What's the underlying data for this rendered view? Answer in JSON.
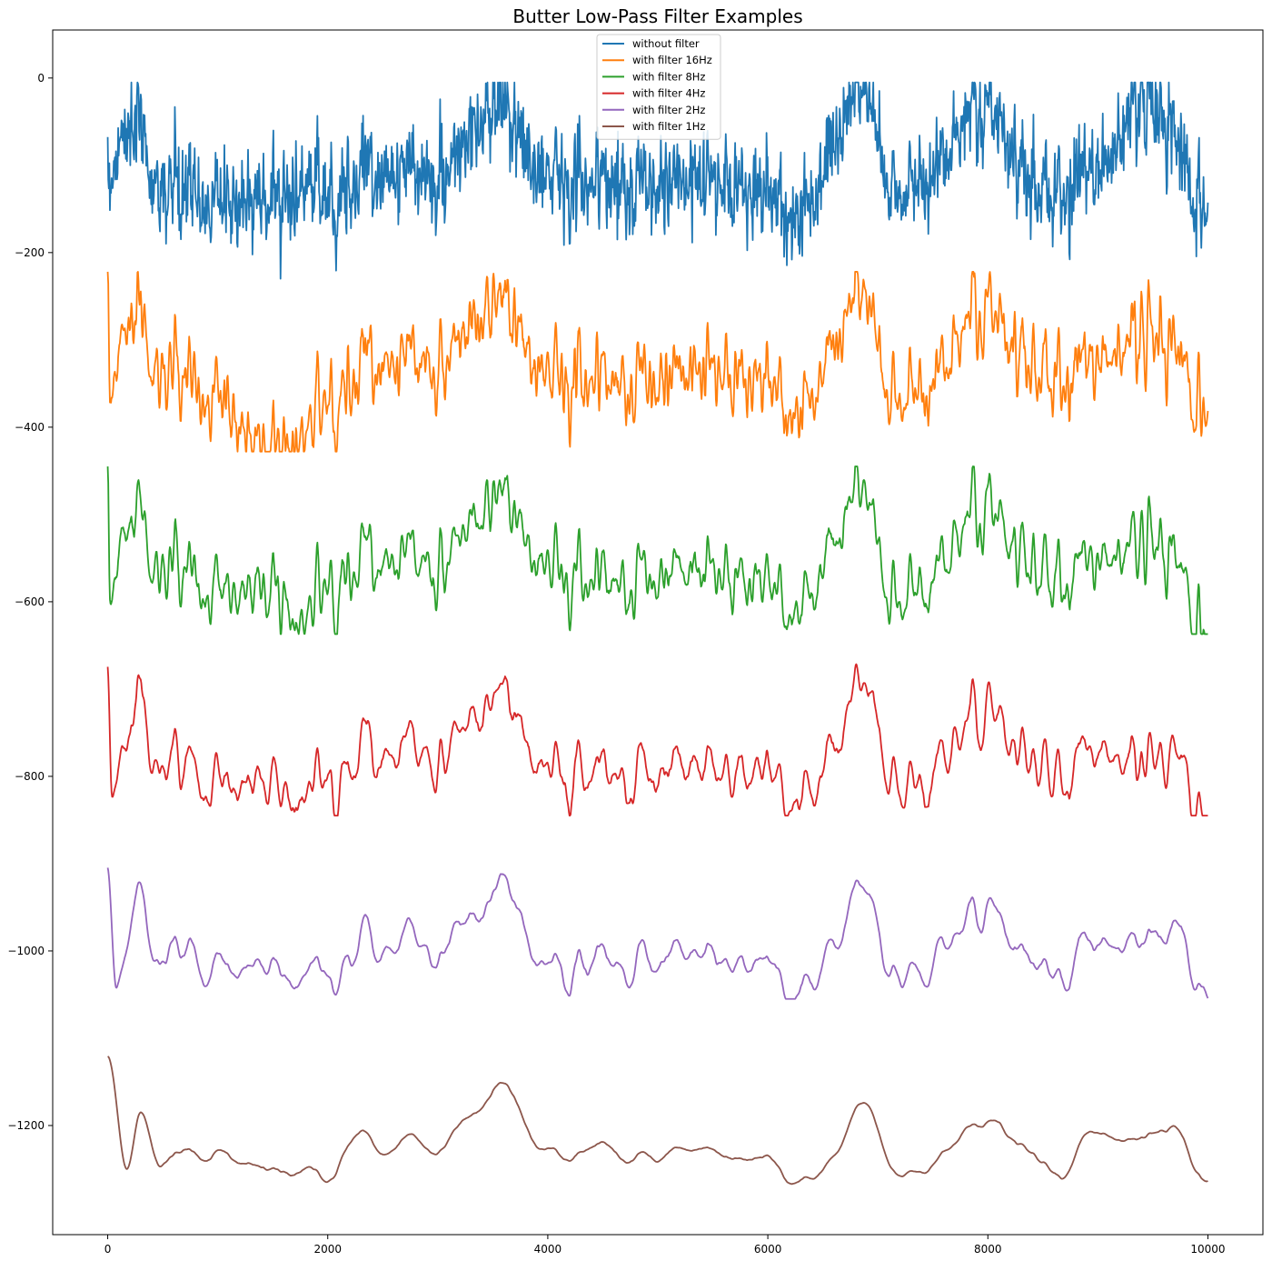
{
  "chart_data": {
    "type": "line",
    "title": "Butter Low-Pass Filter Examples",
    "xlabel": "",
    "ylabel": "",
    "xlim": [
      -500,
      10500
    ],
    "ylim": [
      -1325,
      55
    ],
    "x_ticks": [
      0,
      2000,
      4000,
      6000,
      8000,
      10000
    ],
    "x_tick_labels": [
      "0",
      "2000",
      "4000",
      "6000",
      "8000",
      "10000"
    ],
    "y_ticks": [
      0,
      -200,
      -400,
      -600,
      -800,
      -1000,
      -1200
    ],
    "y_tick_labels": [
      "0",
      "−200",
      "−400",
      "−600",
      "−800",
      "−1000",
      "−1200"
    ],
    "grid": false,
    "legend_position": "top-center",
    "x_range": [
      0,
      10000
    ],
    "series": [
      {
        "name": "without filter",
        "color": "#1f77b4",
        "approx_points": [
          [
            0,
            -110
          ],
          [
            200,
            -50
          ],
          [
            500,
            -130
          ],
          [
            1000,
            -140
          ],
          [
            1500,
            -135
          ],
          [
            2000,
            -130
          ],
          [
            2500,
            -105
          ],
          [
            3000,
            -115
          ],
          [
            3500,
            -40
          ],
          [
            4000,
            -105
          ],
          [
            4500,
            -120
          ],
          [
            5000,
            -125
          ],
          [
            5500,
            -115
          ],
          [
            6000,
            -130
          ],
          [
            6300,
            -155
          ],
          [
            6850,
            -15
          ],
          [
            7200,
            -135
          ],
          [
            7500,
            -110
          ],
          [
            7900,
            -20
          ],
          [
            8500,
            -135
          ],
          [
            9000,
            -110
          ],
          [
            9400,
            -20
          ],
          [
            10000,
            -135
          ]
        ],
        "min": -230,
        "max": -5
      },
      {
        "name": "with filter 16Hz",
        "color": "#ff7f0e",
        "approx_points": [
          [
            0,
            -225
          ],
          [
            20,
            -345
          ],
          [
            200,
            -270
          ],
          [
            500,
            -340
          ],
          [
            1000,
            -365
          ],
          [
            1400,
            -420
          ],
          [
            1800,
            -420
          ],
          [
            2000,
            -360
          ],
          [
            2500,
            -320
          ],
          [
            3000,
            -330
          ],
          [
            3500,
            -265
          ],
          [
            4000,
            -330
          ],
          [
            4500,
            -345
          ],
          [
            5000,
            -350
          ],
          [
            5500,
            -330
          ],
          [
            6000,
            -345
          ],
          [
            6300,
            -380
          ],
          [
            6850,
            -250
          ],
          [
            7200,
            -370
          ],
          [
            7500,
            -350
          ],
          [
            7900,
            -250
          ],
          [
            8500,
            -345
          ],
          [
            9000,
            -330
          ],
          [
            9400,
            -285
          ],
          [
            10000,
            -360
          ]
        ],
        "min": -428,
        "max": -222
      },
      {
        "name": "with filter 8Hz",
        "color": "#2ca02c",
        "approx_points": [
          [
            0,
            -445
          ],
          [
            20,
            -575
          ],
          [
            200,
            -500
          ],
          [
            500,
            -565
          ],
          [
            1000,
            -585
          ],
          [
            1500,
            -580
          ],
          [
            1800,
            -635
          ],
          [
            2000,
            -570
          ],
          [
            2500,
            -545
          ],
          [
            3000,
            -560
          ],
          [
            3500,
            -490
          ],
          [
            4000,
            -550
          ],
          [
            4500,
            -575
          ],
          [
            5000,
            -575
          ],
          [
            5500,
            -560
          ],
          [
            6000,
            -575
          ],
          [
            6300,
            -605
          ],
          [
            6850,
            -475
          ],
          [
            7200,
            -600
          ],
          [
            7500,
            -575
          ],
          [
            7900,
            -475
          ],
          [
            8500,
            -575
          ],
          [
            9000,
            -560
          ],
          [
            9400,
            -520
          ],
          [
            10000,
            -610
          ]
        ],
        "min": -637,
        "max": -445
      },
      {
        "name": "with filter 4Hz",
        "color": "#d62728",
        "approx_points": [
          [
            0,
            -670
          ],
          [
            40,
            -800
          ],
          [
            250,
            -725
          ],
          [
            500,
            -790
          ],
          [
            1000,
            -805
          ],
          [
            1500,
            -800
          ],
          [
            1800,
            -840
          ],
          [
            2000,
            -790
          ],
          [
            2500,
            -765
          ],
          [
            3000,
            -780
          ],
          [
            3500,
            -720
          ],
          [
            4000,
            -780
          ],
          [
            4500,
            -795
          ],
          [
            5000,
            -800
          ],
          [
            5500,
            -785
          ],
          [
            6000,
            -790
          ],
          [
            6350,
            -825
          ],
          [
            6870,
            -700
          ],
          [
            7250,
            -820
          ],
          [
            7500,
            -800
          ],
          [
            7900,
            -705
          ],
          [
            8500,
            -800
          ],
          [
            9000,
            -780
          ],
          [
            9400,
            -770
          ],
          [
            10000,
            -815
          ]
        ],
        "min": -845,
        "max": -668
      },
      {
        "name": "with filter 2Hz",
        "color": "#9467bd",
        "approx_points": [
          [
            0,
            -890
          ],
          [
            80,
            -1030
          ],
          [
            250,
            -950
          ],
          [
            500,
            -1010
          ],
          [
            1000,
            -1015
          ],
          [
            1500,
            -1010
          ],
          [
            1800,
            -1045
          ],
          [
            2100,
            -1000
          ],
          [
            2500,
            -985
          ],
          [
            3000,
            -1000
          ],
          [
            3550,
            -945
          ],
          [
            4000,
            -1005
          ],
          [
            4500,
            -1010
          ],
          [
            5000,
            -1015
          ],
          [
            5500,
            -1000
          ],
          [
            6000,
            -1010
          ],
          [
            6350,
            -1045
          ],
          [
            6870,
            -935
          ],
          [
            7250,
            -1035
          ],
          [
            7500,
            -1015
          ],
          [
            7900,
            -930
          ],
          [
            8500,
            -1030
          ],
          [
            9000,
            -1000
          ],
          [
            9400,
            -975
          ],
          [
            10000,
            -1010
          ]
        ],
        "min": -1055,
        "max": -888
      },
      {
        "name": "with filter 1Hz",
        "color": "#8c564b",
        "approx_points": [
          [
            0,
            -1110
          ],
          [
            180,
            -1245
          ],
          [
            300,
            -1195
          ],
          [
            500,
            -1245
          ],
          [
            1000,
            -1230
          ],
          [
            1500,
            -1245
          ],
          [
            1900,
            -1265
          ],
          [
            2200,
            -1210
          ],
          [
            2500,
            -1220
          ],
          [
            3000,
            -1225
          ],
          [
            3550,
            -1170
          ],
          [
            4000,
            -1220
          ],
          [
            4500,
            -1225
          ],
          [
            5000,
            -1240
          ],
          [
            5500,
            -1225
          ],
          [
            6000,
            -1235
          ],
          [
            6400,
            -1265
          ],
          [
            6900,
            -1180
          ],
          [
            7250,
            -1260
          ],
          [
            7500,
            -1245
          ],
          [
            7900,
            -1180
          ],
          [
            8600,
            -1255
          ],
          [
            9000,
            -1215
          ],
          [
            9500,
            -1205
          ],
          [
            10000,
            -1235
          ]
        ],
        "min": -1268,
        "max": -1110
      }
    ]
  }
}
